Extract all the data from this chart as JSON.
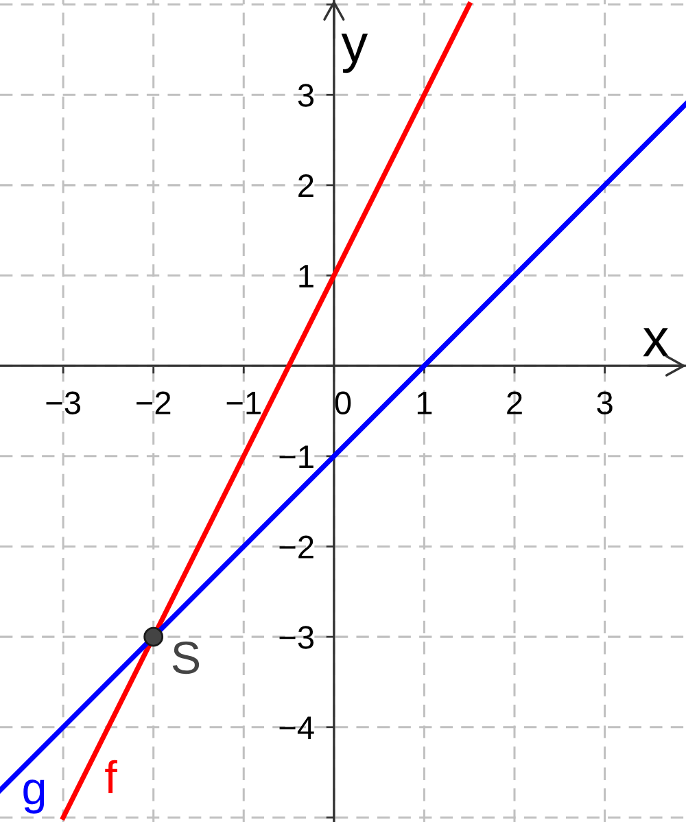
{
  "chart_data": {
    "type": "line",
    "xlabel": "x",
    "ylabel": "y",
    "xlim": [
      -3.7,
      3.9
    ],
    "ylim": [
      -5.05,
      4.05
    ],
    "xticks": [
      -3,
      -2,
      -1,
      0,
      1,
      2,
      3
    ],
    "yticks": [
      {
        "value": -5,
        "label": null
      },
      -4,
      -3,
      -2,
      -1,
      {
        "value": 0,
        "label": null
      },
      1,
      2,
      3,
      {
        "value": 4,
        "label": null
      }
    ],
    "grid": true,
    "line_style": "solid",
    "series": [
      {
        "name": "f",
        "color": "#ff0000",
        "x": [
          -3,
          -2,
          0,
          1.5
        ],
        "values": [
          -5,
          -3,
          1,
          4
        ]
      },
      {
        "name": "g",
        "color": "#0000ff",
        "x": [
          -3.7,
          -2,
          1,
          3.9
        ],
        "values": [
          -4.7,
          -3,
          0,
          2.9
        ]
      },
      {
        "name": "S",
        "type": "scatter",
        "marker": "circle",
        "color": "#444444",
        "x": [
          -2
        ],
        "values": [
          -3
        ]
      }
    ]
  }
}
